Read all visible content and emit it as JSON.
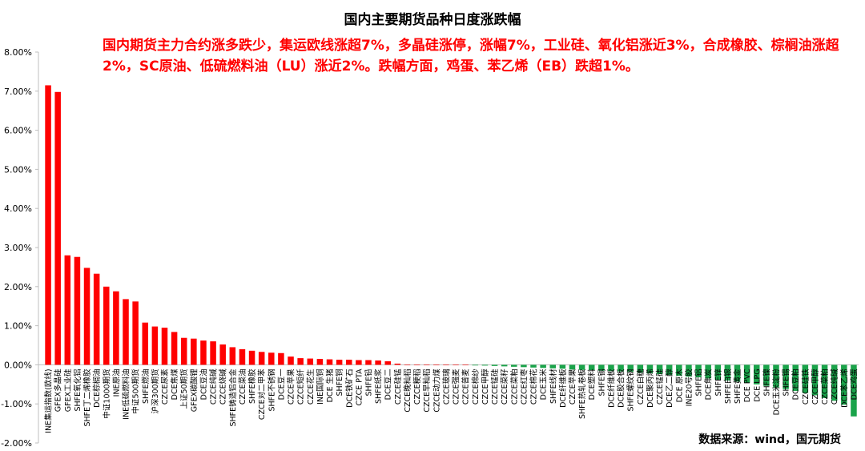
{
  "chart_data": {
    "type": "bar",
    "title": "国内主要期货品种日度涨跌幅",
    "subtitle": "国内期货主力合约涨多跌少，集运欧线涨超7%，多晶硅涨停，涨幅7%，工业硅、氧化铝涨近3%，合成橡胶、棕榈油涨超2%，SC原油、低硫燃料油（LU）涨近2%。跌幅方面，鸡蛋、苯乙烯（EB）跌超1%。",
    "source_note": "数据来源：wind，国元期货",
    "ylim": [
      -2,
      8
    ],
    "yticks": [
      "8.00%",
      "7.00%",
      "6.00%",
      "5.00%",
      "4.00%",
      "3.00%",
      "2.00%",
      "1.00%",
      "0.00%",
      "-1.00%",
      "-2.00%"
    ],
    "grid": false,
    "legend": "none",
    "colors": {
      "positive": "#ff0000",
      "negative": "#1aa34a",
      "axis": "#bfbfbf",
      "text": "#000000"
    },
    "categories": [
      "INE集运指数(欧线)",
      "GFEX多晶硅",
      "GFEX工业硅",
      "SHFE氧化铝",
      "SHFE丁二烯橡胶",
      "DCE棕榈油",
      "中证1000期货",
      "INE原油",
      "INE低硫燃料油",
      "中证500期货",
      "SHFE燃油",
      "沪深300期货",
      "CZCE尿素",
      "DCE焦煤",
      "上证50期货",
      "GFEX碳酸锂",
      "DCE豆油",
      "CZCE纯碱",
      "CZCE烧碱",
      "SHFE铸造铝合金",
      "CZCE菜油",
      "SHFE橡胶",
      "CZCE对二甲苯",
      "SHFE不锈钢",
      "DCE豆一",
      "CZCE苹果",
      "CZCE短纤",
      "CZCE花生",
      "INE国际铜",
      "DCE 生猪",
      "SHFE铜",
      "DCE铁矿石",
      "CZCE PTA",
      "SHFE铅",
      "SHFE纸浆",
      "DCE豆二",
      "CZCE硅锰",
      "CZCE晚籼稻",
      "CZCE粳稻",
      "CZCE早籼稻",
      "CZCE动力煤",
      "CZCE玻璃",
      "CZCE强麦",
      "CZCE普麦",
      "CZCE棉纱",
      "CZCE甲醇",
      "CZCE锰硅",
      "CZCE菜籽",
      "CZCE菜粕",
      "CZCE红枣",
      "CZCE棉花",
      "DCE玉米",
      "SHFE线材",
      "DCE纤维板",
      "CZCE苹果",
      "SHFE热轧卷板",
      "DCE塑料",
      "SHFE锡",
      "DCE纤维板",
      "DCE胶合板",
      "SHFE螺纹钢",
      "CZCE白糖",
      "DCE聚丙烯",
      "CZCE锰硅",
      "DCE乙二醇",
      "DCE 原木",
      "INE20号胶",
      "SHFE铝",
      "DCE焦炭",
      "SHFE锌",
      "SHFE白银",
      "SHFE黄金",
      "DCE PVC",
      "DCE LPG",
      "SHFE镍",
      "DCE玉米淀粉",
      "SHFE锡",
      "DCE豆粕",
      "CZCE硅铁",
      "CZCE甲醇",
      "CZCE菜粕",
      "CZCE纯碱",
      "DCE苯乙烯",
      "DCE鸡蛋"
    ],
    "values": [
      7.15,
      6.98,
      2.8,
      2.76,
      2.48,
      2.33,
      2.0,
      1.88,
      1.68,
      1.62,
      1.08,
      0.98,
      0.95,
      0.84,
      0.69,
      0.67,
      0.62,
      0.6,
      0.52,
      0.45,
      0.4,
      0.36,
      0.33,
      0.31,
      0.3,
      0.21,
      0.17,
      0.16,
      0.15,
      0.14,
      0.13,
      0.13,
      0.12,
      0.12,
      0.11,
      0.09,
      0.03,
      0.0,
      0.0,
      0.0,
      0.0,
      0.0,
      0.0,
      0.0,
      -0.01,
      -0.02,
      -0.03,
      -0.04,
      -0.05,
      -0.06,
      -0.07,
      -0.08,
      -0.09,
      -0.1,
      -0.12,
      -0.13,
      -0.14,
      -0.15,
      -0.16,
      -0.17,
      -0.18,
      -0.2,
      -0.22,
      -0.24,
      -0.26,
      -0.28,
      -0.3,
      -0.32,
      -0.35,
      -0.38,
      -0.4,
      -0.43,
      -0.46,
      -0.5,
      -0.54,
      -0.58,
      -0.62,
      -0.67,
      -0.72,
      -0.78,
      -0.85,
      -0.92,
      -1.02,
      -1.32
    ]
  }
}
